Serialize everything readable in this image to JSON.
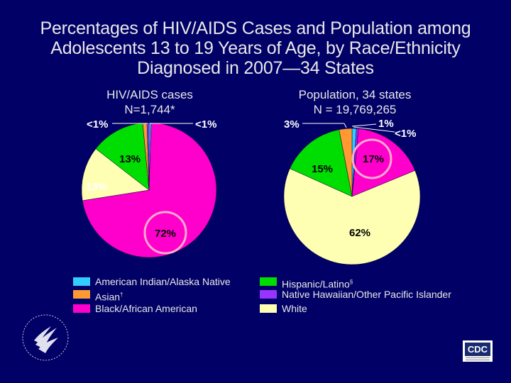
{
  "title": {
    "line1": "Percentages of HIV/AIDS Cases and Population among",
    "line2": "Adolescents 13 to 19 Years of Age, by Race/Ethnicity",
    "line3": "Diagnosed in 2007—34 States"
  },
  "chart_data": [
    {
      "type": "pie",
      "title_line1": "HIV/AIDS cases",
      "title_line2": "N=1,744*",
      "slices": [
        {
          "category": "American Indian/Alaska Native",
          "value": 0.5,
          "label": "<1%",
          "color": "#33ccff"
        },
        {
          "category": "Black/African American",
          "value": 72,
          "label": "72%",
          "color": "#ff00cc"
        },
        {
          "category": "White",
          "value": 13,
          "label": "13%",
          "color": "#ffffb3"
        },
        {
          "category": "Hispanic/Latino",
          "value": 13,
          "label": "13%",
          "color": "#00dd00"
        },
        {
          "category": "Asian",
          "value": 1,
          "label": "",
          "color": "#ff9933"
        },
        {
          "category": "Native Hawaiian/Other Pacific Islander",
          "value": 0.5,
          "label": "<1%",
          "color": "#9933ff"
        }
      ],
      "highlight": "Black/African American"
    },
    {
      "type": "pie",
      "title_line1": "Population, 34 states",
      "title_line2": "N = 19,769,265",
      "slices": [
        {
          "category": "American Indian/Alaska Native",
          "value": 1,
          "label": "1%",
          "color": "#33ccff"
        },
        {
          "category": "Native Hawaiian/Other Pacific Islander",
          "value": 0.5,
          "label": "<1%",
          "color": "#9933ff"
        },
        {
          "category": "Black/African American",
          "value": 17,
          "label": "17%",
          "color": "#ff00cc"
        },
        {
          "category": "White",
          "value": 62,
          "label": "62%",
          "color": "#ffffb3"
        },
        {
          "category": "Hispanic/Latino",
          "value": 15,
          "label": "15%",
          "color": "#00dd00"
        },
        {
          "category": "Asian",
          "value": 3,
          "label": "3%",
          "color": "#ff9933"
        }
      ],
      "highlight": "Black/African American"
    }
  ],
  "legend": {
    "items": [
      {
        "label": "American Indian/Alaska Native",
        "sup": "",
        "color": "#33ccff"
      },
      {
        "label": "Asian",
        "sup": "†",
        "color": "#ff9933"
      },
      {
        "label": "Black/African American",
        "sup": "",
        "color": "#ff00cc"
      },
      {
        "label": "Hispanic/Latino",
        "sup": "§",
        "color": "#00dd00"
      },
      {
        "label": "Native Hawaiian/Other Pacific Islander",
        "sup": "",
        "color": "#9933ff"
      },
      {
        "label": "White",
        "sup": "",
        "color": "#ffffb3"
      }
    ]
  },
  "logos": {
    "cdc": "CDC"
  },
  "colors": {
    "background": "#000066",
    "highlight_ring": "#ffaacc"
  }
}
